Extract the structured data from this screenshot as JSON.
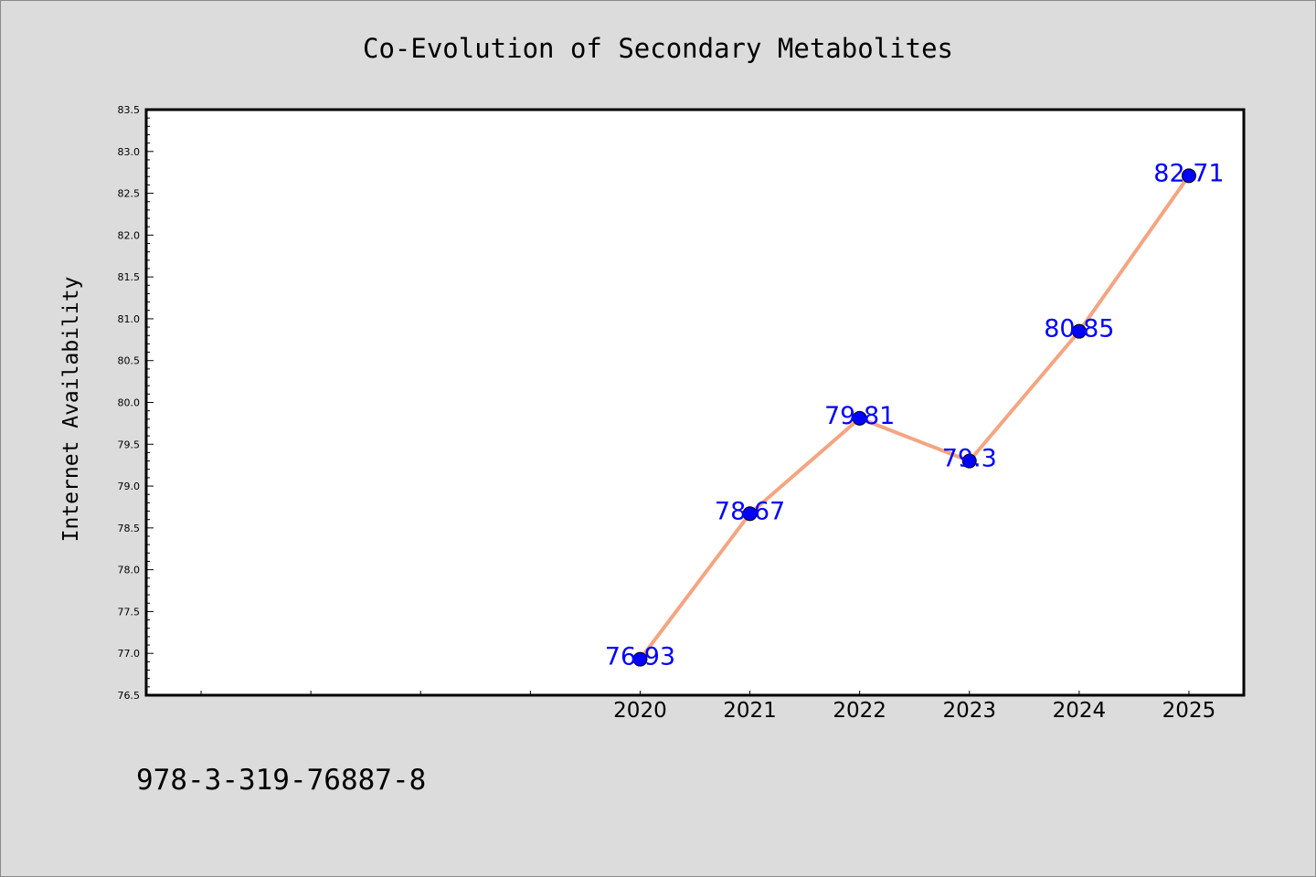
{
  "chart_data": {
    "type": "line",
    "title": "Co-Evolution of Secondary Metabolites",
    "xlabel": "",
    "ylabel": "Internet Availability",
    "x": [
      "2020",
      "2021",
      "2022",
      "2023",
      "2024",
      "2025"
    ],
    "series": [
      {
        "values": [
          76.93,
          78.67,
          79.81,
          79.3,
          80.85,
          82.71
        ]
      }
    ],
    "data_labels": [
      "76.93",
      "78.67",
      "79.81",
      "79.3",
      "80.85",
      "82.71"
    ],
    "ylim": [
      76.5,
      83.5
    ],
    "y_ticks": [
      "76.5",
      "77.0",
      "77.5",
      "78.0",
      "78.5",
      "79.0",
      "79.5",
      "80.0",
      "80.5",
      "81.0",
      "81.5",
      "82.0",
      "82.5",
      "83.0",
      "83.5"
    ],
    "grid": false,
    "legend": "none",
    "line_color": "#f4a582",
    "marker_color": "#0000ff",
    "label_color": "#0000ff"
  },
  "footer_code": "978-3-319-76887-8"
}
